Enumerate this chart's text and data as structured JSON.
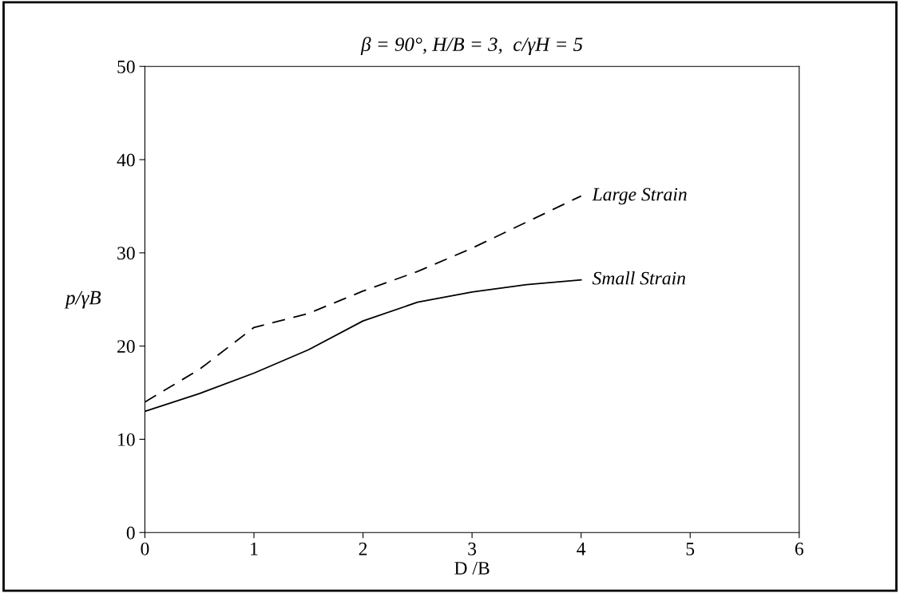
{
  "chart_data": {
    "type": "line",
    "title": "β = 90°, H/B = 3,  c/γH = 5",
    "xlabel": "D /B",
    "ylabel": "p/γB",
    "xlim": [
      0,
      6
    ],
    "xticks": [
      0,
      1,
      2,
      3,
      4,
      5,
      6
    ],
    "ylim": [
      0,
      50
    ],
    "yticks": [
      0,
      10,
      20,
      30,
      40,
      50
    ],
    "grid": false,
    "legend": false,
    "marker": "none",
    "series": [
      {
        "name": "Large Strain",
        "color": "#000000",
        "line_style": "dashed",
        "x": [
          0,
          0.5,
          1,
          1.5,
          2,
          2.5,
          3,
          3.5,
          4
        ],
        "values": [
          14.0,
          17.5,
          22.0,
          23.5,
          25.9,
          28.0,
          30.5,
          33.3,
          36.1
        ]
      },
      {
        "name": "Small Strain",
        "color": "#000000",
        "line_style": "solid",
        "x": [
          0,
          0.5,
          1,
          1.5,
          2,
          2.5,
          3,
          3.5,
          4
        ],
        "values": [
          13.0,
          14.9,
          17.1,
          19.6,
          22.7,
          24.7,
          25.8,
          26.6,
          27.1
        ]
      }
    ]
  }
}
